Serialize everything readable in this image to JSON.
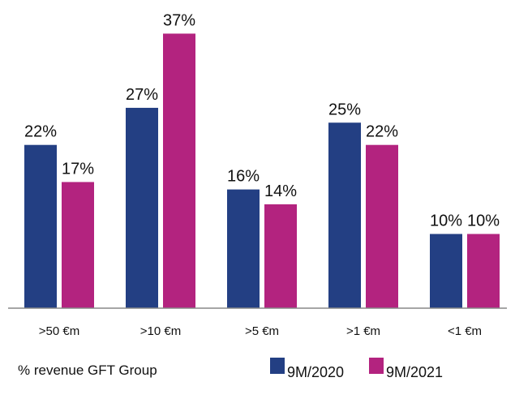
{
  "chart_data": {
    "type": "bar",
    "categories": [
      ">50 €m",
      ">10 €m",
      ">5 €m",
      ">1 €m",
      "<1 €m"
    ],
    "series": [
      {
        "name": "9M/2020",
        "color": "#233f83",
        "values": [
          22,
          27,
          16,
          25,
          10
        ],
        "value_labels": [
          "22%",
          "27%",
          "16%",
          "25%",
          "10%"
        ]
      },
      {
        "name": "9M/2021",
        "color": "#b3237f",
        "values": [
          17,
          37,
          14,
          22,
          10
        ],
        "value_labels": [
          "17%",
          "37%",
          "14%",
          "22%",
          "10%"
        ]
      }
    ],
    "note": "% revenue GFT Group"
  }
}
